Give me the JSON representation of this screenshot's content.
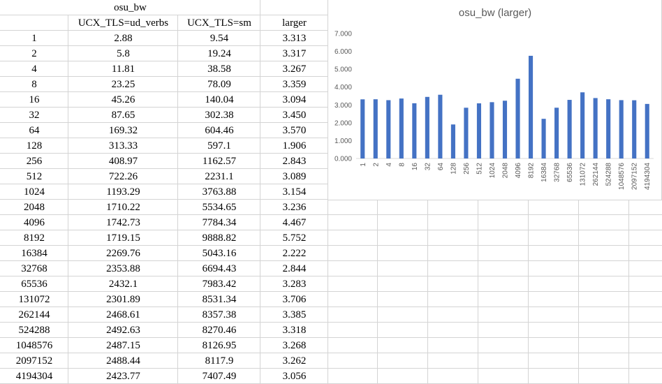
{
  "sheet": {
    "title": "osu_bw",
    "headers": [
      "",
      "UCX_TLS=ud_verbs",
      "UCX_TLS=sm",
      "larger"
    ],
    "rows": [
      [
        "1",
        "2.88",
        "9.54",
        "3.313"
      ],
      [
        "2",
        "5.8",
        "19.24",
        "3.317"
      ],
      [
        "4",
        "11.81",
        "38.58",
        "3.267"
      ],
      [
        "8",
        "23.25",
        "78.09",
        "3.359"
      ],
      [
        "16",
        "45.26",
        "140.04",
        "3.094"
      ],
      [
        "32",
        "87.65",
        "302.38",
        "3.450"
      ],
      [
        "64",
        "169.32",
        "604.46",
        "3.570"
      ],
      [
        "128",
        "313.33",
        "597.1",
        "1.906"
      ],
      [
        "256",
        "408.97",
        "1162.57",
        "2.843"
      ],
      [
        "512",
        "722.26",
        "2231.1",
        "3.089"
      ],
      [
        "1024",
        "1193.29",
        "3763.88",
        "3.154"
      ],
      [
        "2048",
        "1710.22",
        "5534.65",
        "3.236"
      ],
      [
        "4096",
        "1742.73",
        "7784.34",
        "4.467"
      ],
      [
        "8192",
        "1719.15",
        "9888.82",
        "5.752"
      ],
      [
        "16384",
        "2269.76",
        "5043.16",
        "2.222"
      ],
      [
        "32768",
        "2353.88",
        "6694.43",
        "2.844"
      ],
      [
        "65536",
        "2432.1",
        "7983.42",
        "3.283"
      ],
      [
        "131072",
        "2301.89",
        "8531.34",
        "3.706"
      ],
      [
        "262144",
        "2468.61",
        "8357.38",
        "3.385"
      ],
      [
        "524288",
        "2492.63",
        "8270.46",
        "3.318"
      ],
      [
        "1048576",
        "2487.15",
        "8126.95",
        "3.268"
      ],
      [
        "2097152",
        "2488.44",
        "8117.9",
        "3.262"
      ],
      [
        "4194304",
        "2423.77",
        "7407.49",
        "3.056"
      ]
    ]
  },
  "chart_data": {
    "type": "bar",
    "title": "osu_bw (larger)",
    "categories": [
      "1",
      "2",
      "4",
      "8",
      "16",
      "32",
      "64",
      "128",
      "256",
      "512",
      "1024",
      "2048",
      "4096",
      "8192",
      "16384",
      "32768",
      "65536",
      "131072",
      "262144",
      "524288",
      "1048576",
      "2097152",
      "4194304"
    ],
    "values": [
      3.313,
      3.317,
      3.267,
      3.359,
      3.094,
      3.45,
      3.57,
      1.906,
      2.843,
      3.089,
      3.154,
      3.236,
      4.467,
      5.752,
      2.222,
      2.844,
      3.283,
      3.706,
      3.385,
      3.318,
      3.268,
      3.262,
      3.056
    ],
    "ylim": [
      0,
      7
    ],
    "yticks": [
      "0.000",
      "1.000",
      "2.000",
      "3.000",
      "4.000",
      "5.000",
      "6.000",
      "7.000"
    ],
    "bar_color": "#4472c4",
    "grid": false
  }
}
